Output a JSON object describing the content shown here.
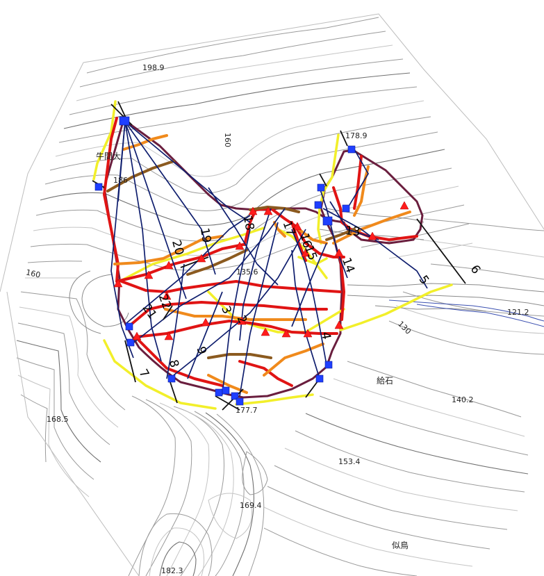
{
  "map": {
    "elevation_labels": [
      "198.9",
      "178.9",
      "186",
      "160",
      "160",
      "135.6",
      "121.2",
      "130",
      "140.2",
      "168.5",
      "177.7",
      "153.4",
      "169.4",
      "182.3"
    ],
    "place_labels": [
      "牛間大",
      "給石",
      "似鳥"
    ],
    "line_numbers": [
      "20",
      "19",
      "18",
      "17",
      "16",
      "15",
      "14",
      "13",
      "22",
      "21",
      "3",
      "2",
      "9",
      "8",
      "7",
      "4",
      "5",
      "6"
    ],
    "colors": {
      "boundary": "#6a1e3e",
      "band_red": "#e01414",
      "band_orange": "#f08a1c",
      "band_brown": "#8b5a1f",
      "band_yellow": "#f2ef2a",
      "survey_line": "#0f1e6e",
      "marker_square": "#1f3fff",
      "marker_triangle": "#ff1c1c",
      "river": "#3a4fb0"
    },
    "icons": [
      "blue-square-marker",
      "red-triangle-marker"
    ]
  }
}
